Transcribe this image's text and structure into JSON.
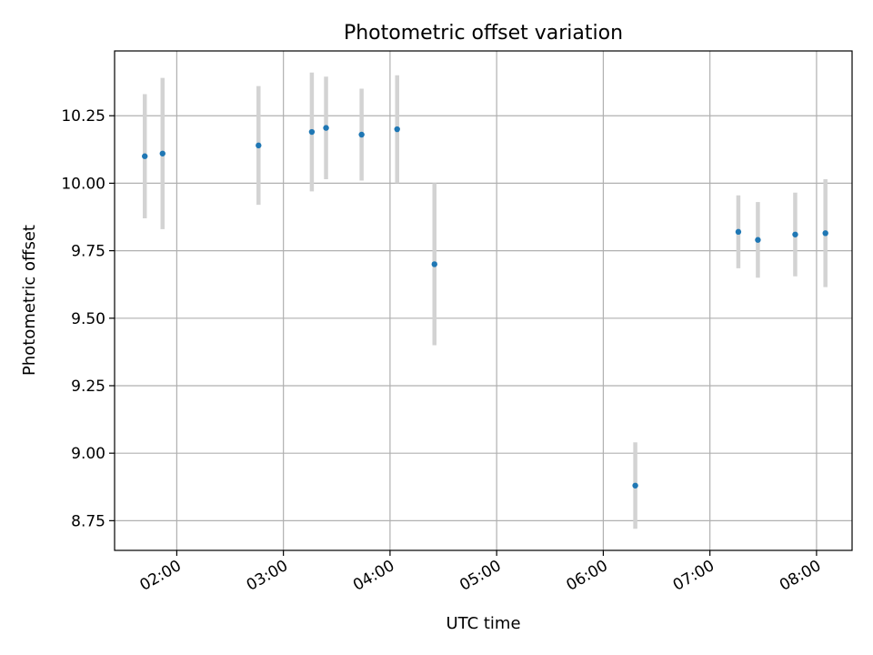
{
  "chart_data": {
    "type": "scatter",
    "title": "Photometric offset variation",
    "xlabel": "UTC time",
    "ylabel": "Photometric offset",
    "x_unit": "hours UTC",
    "xlim": [
      "01:25",
      "08:20"
    ],
    "ylim": [
      8.64,
      10.49
    ],
    "grid": true,
    "x_ticks": [
      {
        "value": "02:00",
        "label": "02:00"
      },
      {
        "value": "03:00",
        "label": "03:00"
      },
      {
        "value": "04:00",
        "label": "04:00"
      },
      {
        "value": "05:00",
        "label": "05:00"
      },
      {
        "value": "06:00",
        "label": "06:00"
      },
      {
        "value": "07:00",
        "label": "07:00"
      },
      {
        "value": "08:00",
        "label": "08:00"
      }
    ],
    "y_ticks": [
      {
        "value": 8.75,
        "label": "8.75"
      },
      {
        "value": 9.0,
        "label": "9.00"
      },
      {
        "value": 9.25,
        "label": "9.25"
      },
      {
        "value": 9.5,
        "label": "9.50"
      },
      {
        "value": 9.75,
        "label": "9.75"
      },
      {
        "value": 10.0,
        "label": "10.00"
      },
      {
        "value": 10.25,
        "label": "10.25"
      }
    ],
    "series": [
      {
        "marker_color": "#1f77b4",
        "errorbar_color": "#d3d3d3",
        "points": [
          {
            "x": "01:42",
            "y": 10.1,
            "err": 0.23
          },
          {
            "x": "01:52",
            "y": 10.11,
            "err": 0.28
          },
          {
            "x": "02:46",
            "y": 10.14,
            "err": 0.22
          },
          {
            "x": "03:16",
            "y": 10.19,
            "err": 0.22
          },
          {
            "x": "03:24",
            "y": 10.205,
            "err": 0.19
          },
          {
            "x": "03:44",
            "y": 10.18,
            "err": 0.17
          },
          {
            "x": "04:04",
            "y": 10.2,
            "err": 0.2
          },
          {
            "x": "04:25",
            "y": 9.7,
            "err": 0.3
          },
          {
            "x": "06:18",
            "y": 8.88,
            "err": 0.16
          },
          {
            "x": "07:16",
            "y": 9.82,
            "err": 0.135
          },
          {
            "x": "07:27",
            "y": 9.79,
            "err": 0.14
          },
          {
            "x": "07:48",
            "y": 9.81,
            "err": 0.155
          },
          {
            "x": "08:05",
            "y": 9.815,
            "err": 0.2
          }
        ]
      }
    ]
  }
}
